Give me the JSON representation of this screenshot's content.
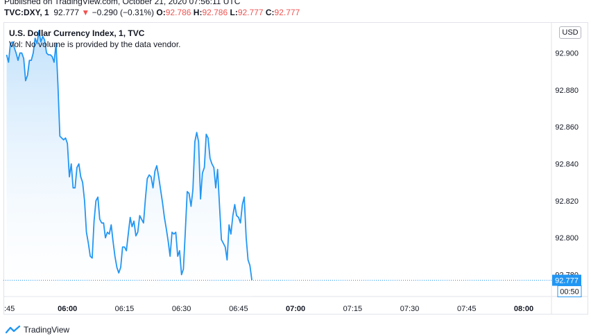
{
  "header": {
    "published": "Published on TradingView.com, October 21, 2020 07:56:11 UTC",
    "symbol": "TVC:DXY, 1",
    "last": "92.777",
    "change": "−0.290 (−0.31%)",
    "o_label": "O:",
    "o_value": "92.786",
    "h_label": "H:",
    "h_value": "92.786",
    "l_label": "L:",
    "l_value": "92.777",
    "c_label": "C:",
    "c_value": "92.777"
  },
  "legend": {
    "title": "U.S. Dollar Currency Index, 1, TVC",
    "volume_note": "Vol: No volume is provided by the data vendor."
  },
  "scale": {
    "currency": "USD",
    "price_label": "92.777",
    "countdown": "00:50"
  },
  "branding": {
    "name": "TradingView",
    "icon": "tradingview-logo-icon"
  },
  "colors": {
    "line": "#2196f3",
    "fill_top": "#bbdefb",
    "fill_bottom": "#ffffff",
    "label_bg": "#2196f3",
    "down": "#ef5350"
  },
  "chart_data": {
    "type": "area",
    "title": "U.S. Dollar Currency Index, 1, TVC",
    "xlabel": "",
    "ylabel": "",
    "x_ticks": [
      ":45",
      "06:00",
      "06:15",
      "06:30",
      "06:45",
      "07:00",
      "07:15",
      "07:30",
      "07:45",
      "08:00"
    ],
    "y_ticks": [
      "92.900",
      "92.880",
      "92.860",
      "92.840",
      "92.820",
      "92.800",
      "92.780"
    ],
    "ylim": [
      92.7682,
      92.9163
    ],
    "grid": false,
    "x_start": "05:44",
    "x_step_minutes": 0.5,
    "values": [
      92.899,
      92.895,
      92.905,
      92.906,
      92.903,
      92.9,
      92.896,
      92.9,
      92.9,
      92.897,
      92.885,
      92.888,
      92.896,
      92.896,
      92.9,
      92.908,
      92.905,
      92.912,
      92.906,
      92.909,
      92.907,
      92.9,
      92.899,
      92.899,
      92.898,
      92.895,
      92.905,
      92.883,
      92.855,
      92.854,
      92.853,
      92.854,
      92.851,
      92.833,
      92.84,
      92.827,
      92.827,
      92.838,
      92.84,
      92.833,
      92.83,
      92.82,
      92.803,
      92.797,
      92.79,
      92.789,
      92.809,
      92.82,
      92.822,
      92.81,
      92.808,
      92.808,
      92.8,
      92.803,
      92.802,
      92.807,
      92.798,
      92.79,
      92.784,
      92.781,
      92.784,
      92.795,
      92.795,
      92.793,
      92.802,
      92.811,
      92.806,
      92.809,
      92.801,
      92.803,
      92.812,
      92.81,
      92.808,
      92.821,
      92.832,
      92.834,
      92.833,
      92.827,
      92.836,
      92.839,
      92.833,
      92.826,
      92.819,
      92.811,
      92.805,
      92.798,
      92.79,
      92.803,
      92.802,
      92.803,
      92.79,
      92.793,
      92.78,
      92.783,
      92.803,
      92.825,
      92.824,
      92.817,
      92.826,
      92.852,
      92.857,
      92.852,
      92.821,
      92.835,
      92.838,
      92.856,
      92.854,
      92.843,
      92.84,
      92.838,
      92.827,
      92.837,
      92.817,
      92.799,
      92.797,
      92.795,
      92.788,
      92.807,
      92.802,
      92.812,
      92.818,
      92.812,
      92.811,
      92.808,
      92.818,
      92.822,
      92.8,
      92.788,
      92.785,
      92.777
    ]
  }
}
